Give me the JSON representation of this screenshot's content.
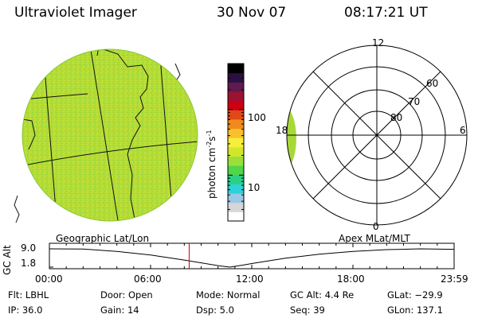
{
  "header": {
    "title": "Ultraviolet Imager",
    "date": "30 Nov 07",
    "time": "08:17:21 UT"
  },
  "colorbar": {
    "unit_label": "photon cm-2s-1",
    "ticks": [
      "100",
      "10"
    ],
    "scale": "log",
    "range": [
      2,
      500
    ],
    "colors": [
      "#ffffff",
      "#d6d6d6",
      "#9ac8e6",
      "#2ed2d8",
      "#2ccf86",
      "#50d64a",
      "#9ae03a",
      "#d2e62a",
      "#f6ee3a",
      "#f8c02a",
      "#f08a1c",
      "#e04818",
      "#cc0010",
      "#9c1230",
      "#601a50",
      "#2a1040",
      "#000000"
    ]
  },
  "left_panel": {
    "label": "Geographic Lat/Lon",
    "fill_color": "#b4dc36"
  },
  "right_panel": {
    "label": "Apex MLat/MLT",
    "mlt_labels": [
      "12",
      "18",
      "6",
      "0"
    ],
    "lat_labels": [
      "60",
      "70",
      "80"
    ],
    "fill_color": "#a8d838"
  },
  "timeline": {
    "axis_label": "GC Alt",
    "y_ticks": [
      "9.0",
      "1.8"
    ],
    "x_ticks": [
      "00:00",
      "06:00",
      "12:00",
      "18:00",
      "23:59"
    ],
    "marker_color": "#cc0000",
    "current_time": "08:17:21",
    "altitude_curve": [
      {
        "t": 0,
        "alt": 9.0
      },
      {
        "t": 2,
        "alt": 8.9
      },
      {
        "t": 4,
        "alt": 8.0
      },
      {
        "t": 6,
        "alt": 6.6
      },
      {
        "t": 8,
        "alt": 4.6
      },
      {
        "t": 9,
        "alt": 3.5
      },
      {
        "t": 10,
        "alt": 2.4
      },
      {
        "t": 10.7,
        "alt": 1.8
      },
      {
        "t": 11.5,
        "alt": 2.6
      },
      {
        "t": 12,
        "alt": 3.2
      },
      {
        "t": 14,
        "alt": 5.3
      },
      {
        "t": 16,
        "alt": 6.9
      },
      {
        "t": 18,
        "alt": 8.0
      },
      {
        "t": 20,
        "alt": 8.7
      },
      {
        "t": 22,
        "alt": 9.0
      },
      {
        "t": 23.98,
        "alt": 8.8
      }
    ]
  },
  "info": {
    "filter": "Flt: LBHL",
    "ip": "IP: 36.0",
    "door": "Door: Open",
    "gain": "Gain: 14",
    "mode": "Mode: Normal",
    "dsp": "Dsp:    5.0",
    "gc_alt": "GC Alt: 4.4 Re",
    "seq": "Seq: 39",
    "glat": "GLat: −29.9",
    "glon": "GLon: 137.1"
  }
}
